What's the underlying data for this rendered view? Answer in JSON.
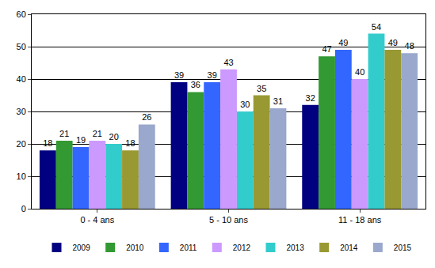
{
  "chart_data": {
    "type": "bar",
    "categories": [
      "0 - 4 ans",
      "5 - 10 ans",
      "11 - 18 ans"
    ],
    "series": [
      {
        "name": "2009",
        "color": "#000080",
        "values": [
          18,
          39,
          32
        ]
      },
      {
        "name": "2010",
        "color": "#339933",
        "values": [
          21,
          36,
          47
        ]
      },
      {
        "name": "2011",
        "color": "#3366ff",
        "values": [
          19,
          39,
          49
        ]
      },
      {
        "name": "2012",
        "color": "#cc99ff",
        "values": [
          21,
          43,
          40
        ]
      },
      {
        "name": "2013",
        "color": "#33cccc",
        "values": [
          20,
          30,
          54
        ]
      },
      {
        "name": "2014",
        "color": "#999933",
        "values": [
          18,
          35,
          49
        ]
      },
      {
        "name": "2015",
        "color": "#99a8cc",
        "values": [
          26,
          31,
          48
        ]
      }
    ],
    "ylim": [
      0,
      60
    ],
    "yticks": [
      0,
      10,
      20,
      30,
      40,
      50,
      60
    ],
    "grid": true,
    "legend": "bottom",
    "data_labels": true
  }
}
